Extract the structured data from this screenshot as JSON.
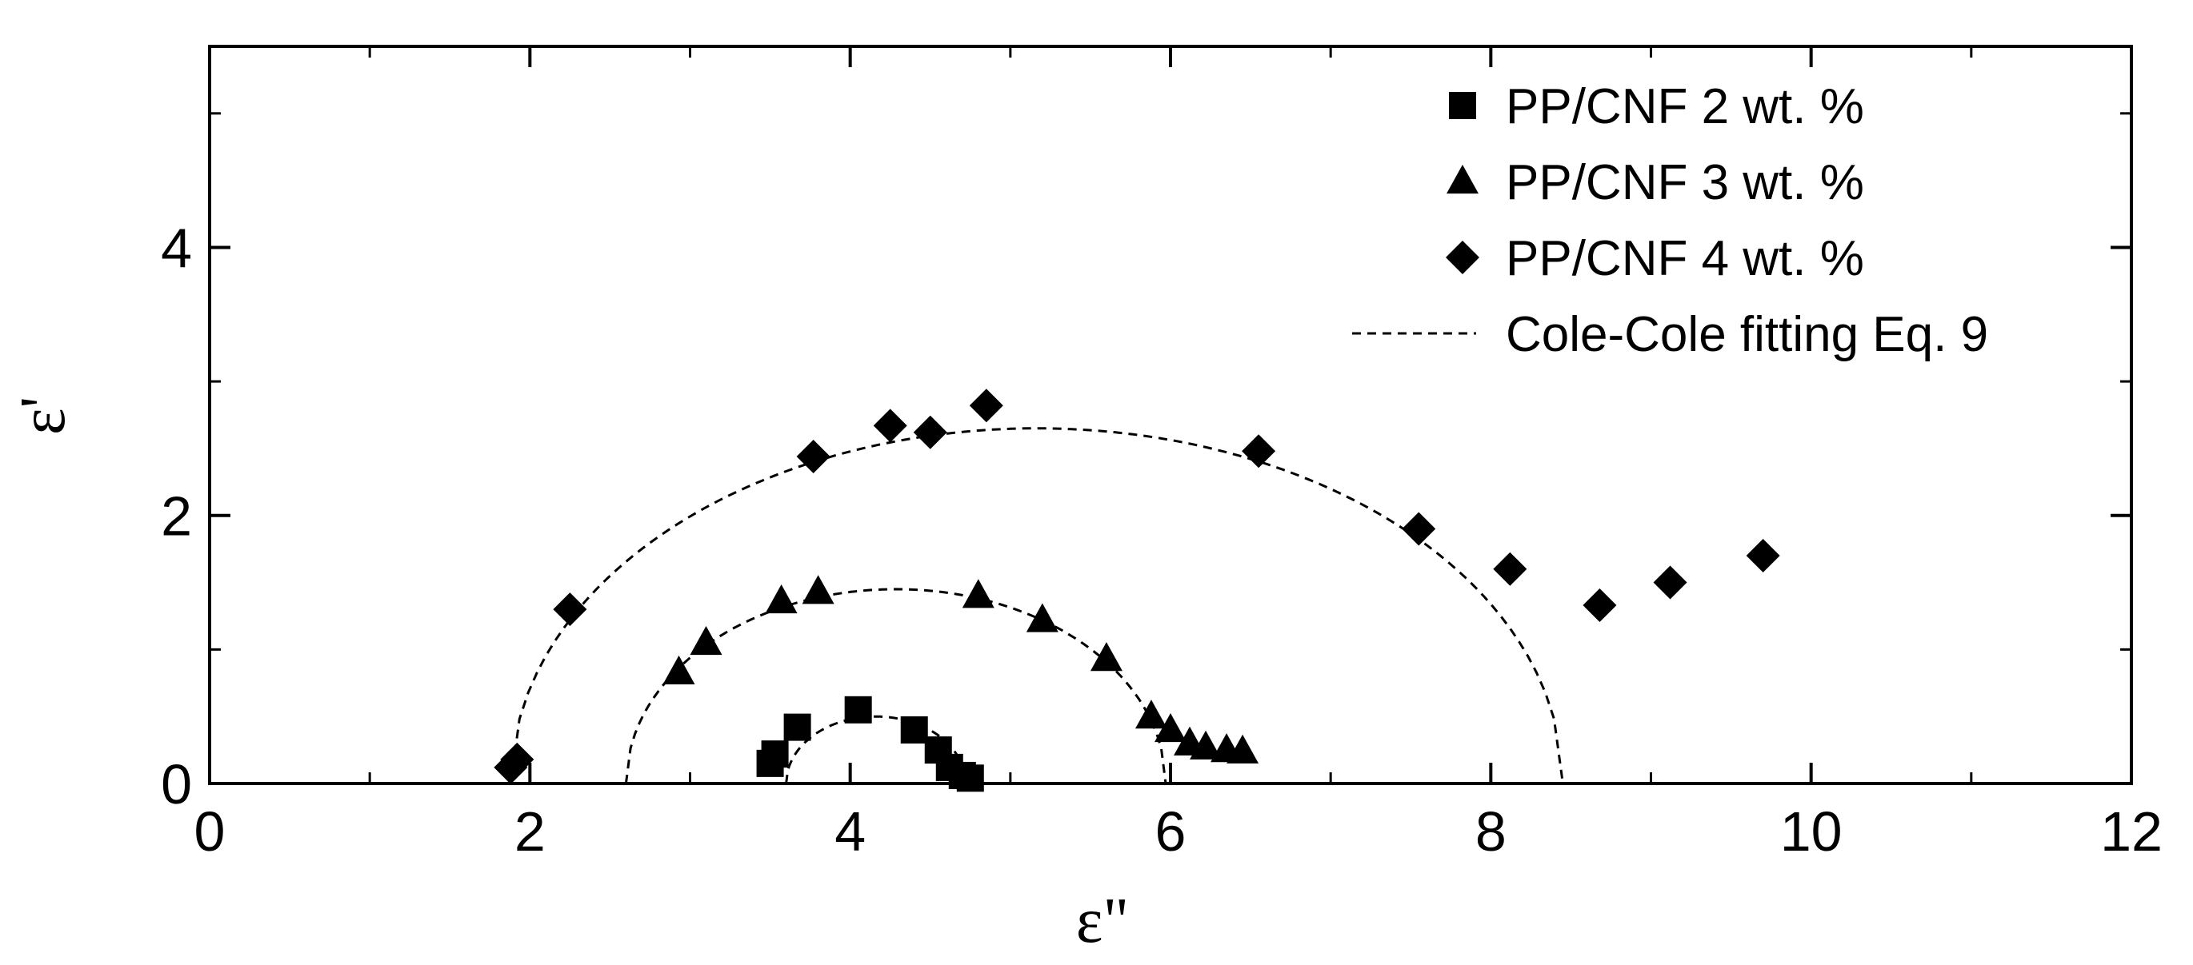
{
  "chart_data": {
    "type": "scatter",
    "title": "",
    "xlabel": "ε\"",
    "ylabel": "ε'",
    "xlim": [
      0,
      12
    ],
    "ylim": [
      0,
      5.5
    ],
    "x_ticks": [
      0,
      2,
      4,
      6,
      8,
      10,
      12
    ],
    "x_tick_labels": [
      "0",
      "2",
      "4",
      "6",
      "8",
      "10",
      "12"
    ],
    "y_ticks": [
      0,
      2,
      4
    ],
    "y_tick_labels": [
      "0",
      "2",
      "4"
    ],
    "grid": false,
    "legend_position": "top-right",
    "series": [
      {
        "name": "PP/CNF 2 wt. %",
        "marker": "square",
        "x": [
          3.5,
          3.53,
          3.67,
          4.05,
          4.4,
          4.55,
          4.62,
          4.7,
          4.75
        ],
        "y": [
          0.15,
          0.22,
          0.42,
          0.55,
          0.4,
          0.25,
          0.12,
          0.06,
          0.04
        ]
      },
      {
        "name": "PP/CNF 3 wt. %",
        "marker": "triangle",
        "x": [
          2.93,
          3.1,
          3.57,
          3.8,
          4.8,
          5.2,
          5.6,
          5.88,
          6.0,
          6.12,
          6.22,
          6.35,
          6.45
        ],
        "y": [
          0.83,
          1.05,
          1.36,
          1.43,
          1.4,
          1.22,
          0.93,
          0.5,
          0.4,
          0.3,
          0.27,
          0.25,
          0.24
        ]
      },
      {
        "name": "PP/CNF 4 wt. %",
        "marker": "diamond",
        "x": [
          1.88,
          1.92,
          2.25,
          3.77,
          4.25,
          4.5,
          4.85,
          6.55,
          7.55,
          8.12,
          8.68,
          9.12,
          9.7
        ],
        "y": [
          0.12,
          0.18,
          1.3,
          2.44,
          2.67,
          2.62,
          2.82,
          2.48,
          1.9,
          1.6,
          1.33,
          1.5,
          1.7
        ]
      },
      {
        "name": "Cole-Cole fitting Eq. 9",
        "style": "dashed-line",
        "arcs": [
          {
            "x_start": 3.6,
            "x_end": 4.72,
            "y_max": 0.5
          },
          {
            "x_start": 2.6,
            "x_end": 5.97,
            "y_max": 1.45
          },
          {
            "x_start": 1.88,
            "x_end": 8.45,
            "y_max": 2.65
          }
        ]
      }
    ]
  }
}
